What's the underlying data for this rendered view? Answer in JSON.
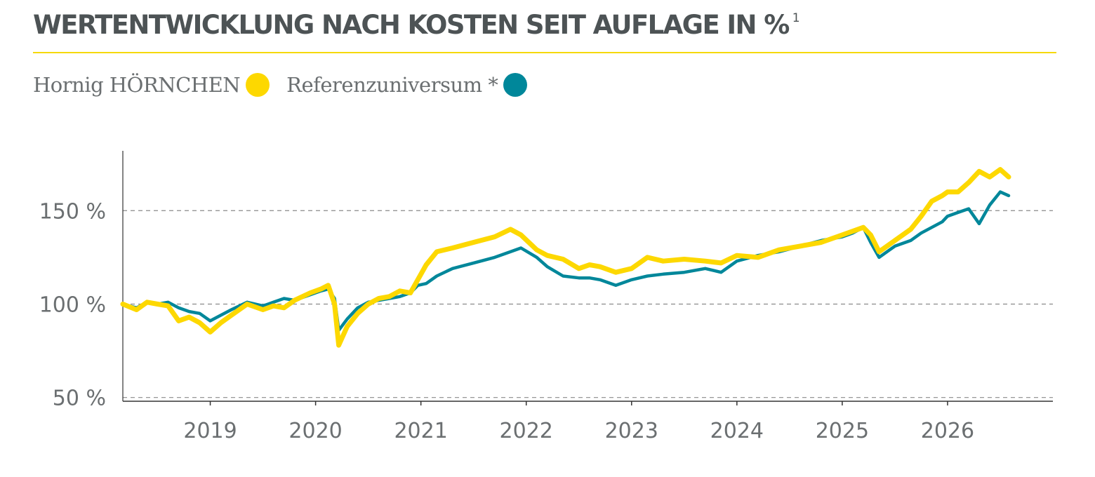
{
  "header": {
    "title": "WERTENTWICKLUNG NACH KOSTEN SEIT AUFLAGE IN %",
    "title_superscript": "1"
  },
  "colors": {
    "accent_rule": "#f5d90a",
    "fund": "#fdd800",
    "reference": "#00879a",
    "axis": "#333333",
    "grid": "#8a8a8a",
    "text": "#6b6f71"
  },
  "chart_data": {
    "type": "line",
    "legend": [
      {
        "label": "Hornig HÖRNCHEN",
        "color": "#fdd800"
      },
      {
        "label": "Referenzuniversum *",
        "color": "#00879a"
      }
    ],
    "y_ticks": [
      "50 %",
      "100 %",
      "150 %"
    ],
    "y_tick_values": [
      50,
      100,
      150
    ],
    "ylim": [
      48,
      182
    ],
    "x_ticks": [
      "2019",
      "2020",
      "2021",
      "2022",
      "2023",
      "2024",
      "2025",
      "2026"
    ],
    "x_tick_values": [
      2019,
      2020,
      2021,
      2022,
      2023,
      2024,
      2025,
      2026
    ],
    "xlim": [
      2018.17,
      2027.0
    ],
    "grid": "horizontal dashed",
    "series": [
      {
        "name": "Hornig HÖRNCHEN",
        "color": "#fdd800",
        "x": [
          2018.17,
          2018.3,
          2018.4,
          2018.5,
          2018.6,
          2018.7,
          2018.8,
          2018.9,
          2019.0,
          2019.1,
          2019.2,
          2019.35,
          2019.5,
          2019.6,
          2019.7,
          2019.8,
          2019.95,
          2020.05,
          2020.12,
          2020.18,
          2020.22,
          2020.3,
          2020.4,
          2020.5,
          2020.6,
          2020.7,
          2020.8,
          2020.9,
          2020.97,
          2021.05,
          2021.15,
          2021.3,
          2021.5,
          2021.7,
          2021.85,
          2021.95,
          2022.1,
          2022.2,
          2022.35,
          2022.5,
          2022.6,
          2022.7,
          2022.85,
          2023.0,
          2023.15,
          2023.3,
          2023.5,
          2023.7,
          2023.85,
          2024.0,
          2024.2,
          2024.4,
          2024.6,
          2024.8,
          2025.0,
          2025.1,
          2025.2,
          2025.27,
          2025.35,
          2025.5,
          2025.65,
          2025.75,
          2025.85,
          2025.95,
          2026.0,
          2026.1,
          2026.2,
          2026.3,
          2026.4,
          2026.5,
          2026.58
        ],
        "values": [
          100,
          97,
          101,
          100,
          99,
          91,
          93,
          90,
          85,
          90,
          94,
          100,
          97,
          99,
          98,
          102,
          106,
          108,
          110,
          100,
          78,
          88,
          95,
          100,
          103,
          104,
          107,
          106,
          113,
          121,
          128,
          130,
          133,
          136,
          140,
          137,
          129,
          126,
          124,
          119,
          121,
          120,
          117,
          119,
          125,
          123,
          124,
          123,
          122,
          126,
          125,
          129,
          131,
          133,
          137,
          139,
          141,
          137,
          128,
          134,
          140,
          147,
          155,
          158,
          160,
          160,
          165,
          171,
          168,
          172,
          168
        ]
      },
      {
        "name": "Referenzuniversum *",
        "color": "#00879a",
        "x": [
          2018.17,
          2018.3,
          2018.4,
          2018.5,
          2018.6,
          2018.7,
          2018.8,
          2018.9,
          2019.0,
          2019.1,
          2019.2,
          2019.35,
          2019.5,
          2019.6,
          2019.7,
          2019.8,
          2019.95,
          2020.05,
          2020.12,
          2020.18,
          2020.22,
          2020.3,
          2020.4,
          2020.5,
          2020.6,
          2020.7,
          2020.8,
          2020.9,
          2020.97,
          2021.05,
          2021.15,
          2021.3,
          2021.5,
          2021.7,
          2021.85,
          2021.95,
          2022.1,
          2022.2,
          2022.35,
          2022.5,
          2022.6,
          2022.7,
          2022.85,
          2023.0,
          2023.15,
          2023.3,
          2023.5,
          2023.7,
          2023.85,
          2024.0,
          2024.2,
          2024.4,
          2024.6,
          2024.8,
          2025.0,
          2025.1,
          2025.2,
          2025.27,
          2025.35,
          2025.5,
          2025.65,
          2025.75,
          2025.85,
          2025.95,
          2026.0,
          2026.1,
          2026.2,
          2026.3,
          2026.4,
          2026.5,
          2026.58
        ],
        "values": [
          100,
          98,
          101,
          100,
          101,
          98,
          96,
          95,
          91,
          94,
          97,
          101,
          99,
          101,
          103,
          102,
          105,
          107,
          108,
          103,
          86,
          92,
          98,
          101,
          102,
          103,
          104,
          106,
          110,
          111,
          115,
          119,
          122,
          125,
          128,
          130,
          125,
          120,
          115,
          114,
          114,
          113,
          110,
          113,
          115,
          116,
          117,
          119,
          117,
          123,
          126,
          128,
          131,
          134,
          136,
          138,
          141,
          133,
          125,
          131,
          134,
          138,
          141,
          144,
          147,
          149,
          151,
          143,
          153,
          160,
          158
        ]
      }
    ]
  }
}
